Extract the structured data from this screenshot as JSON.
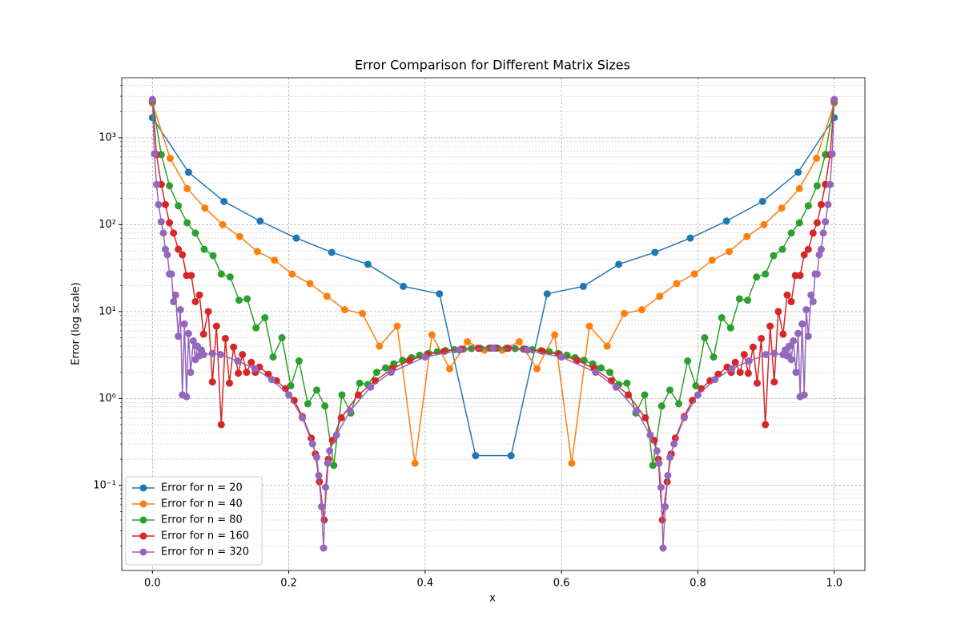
{
  "chart_data": {
    "type": "line",
    "title": "Error Comparison for Different Matrix Sizes",
    "xlabel": "x",
    "ylabel": "Error (log scale)",
    "log_y": true,
    "grid": true,
    "minor_grid": true,
    "legend": "lower left",
    "xlim": [
      -0.045,
      1.045
    ],
    "xticks": [
      {
        "value": 0,
        "label": "0.0"
      },
      {
        "value": 0.2,
        "label": "0.2"
      },
      {
        "value": 0.4,
        "label": "0.4"
      },
      {
        "value": 0.6,
        "label": "0.6"
      },
      {
        "value": 0.8,
        "label": "0.8"
      },
      {
        "value": 1,
        "label": "1.0"
      }
    ],
    "ylim": [
      0.0105,
      4900
    ],
    "yticks": [
      {
        "value": 0.1,
        "label": "10⁻¹"
      },
      {
        "value": 1,
        "label": "10⁰"
      },
      {
        "value": 10,
        "label": "10¹"
      },
      {
        "value": 100,
        "label": "10²"
      },
      {
        "value": 1000,
        "label": "10³"
      }
    ],
    "yminorticks": [
      0.02,
      0.03,
      0.04,
      0.05,
      0.06,
      0.07,
      0.08,
      0.09,
      0.2,
      0.3,
      0.4,
      0.5,
      0.6,
      0.7,
      0.8,
      0.9,
      2,
      3,
      4,
      5,
      6,
      7,
      8,
      9,
      20,
      30,
      40,
      50,
      60,
      70,
      80,
      90,
      200,
      300,
      400,
      500,
      600,
      700,
      800,
      900,
      2000,
      3000,
      4000
    ],
    "series": [
      {
        "name": "Error for n = 20",
        "color": "#1f77b4",
        "x": [
          0,
          0.053,
          0.105,
          0.158,
          0.211,
          0.263,
          0.316,
          0.368,
          0.421,
          0.474,
          0.526,
          0.579,
          0.632,
          0.684,
          0.737,
          0.789,
          0.842,
          0.895,
          0.947,
          1
        ],
        "values": [
          1700,
          400,
          185,
          110,
          70,
          48,
          35,
          19.5,
          16,
          0.22,
          0.22,
          16,
          19.5,
          35,
          48,
          70,
          110,
          185,
          400,
          1700
        ]
      },
      {
        "name": "Error for n = 40",
        "color": "#ff7f0e",
        "x": [
          0,
          0.026,
          0.051,
          0.077,
          0.103,
          0.128,
          0.154,
          0.179,
          0.205,
          0.231,
          0.256,
          0.282,
          0.308,
          0.333,
          0.359,
          0.385,
          0.41,
          0.436,
          0.462,
          0.487,
          0.513,
          0.538,
          0.564,
          0.59,
          0.615,
          0.641,
          0.667,
          0.692,
          0.718,
          0.744,
          0.769,
          0.795,
          0.821,
          0.846,
          0.872,
          0.897,
          0.923,
          0.949,
          0.974,
          1
        ],
        "values": [
          2500,
          580,
          260,
          155,
          100,
          73,
          49,
          39,
          27,
          21,
          15,
          10.5,
          9.5,
          4,
          6.8,
          0.18,
          5.4,
          2.2,
          4.5,
          3.6,
          3.6,
          4.5,
          2.2,
          5.4,
          0.18,
          6.8,
          4,
          9.5,
          10.5,
          15,
          21,
          27,
          39,
          49,
          73,
          100,
          155,
          260,
          580,
          2500
        ]
      },
      {
        "name": "Error for n = 80",
        "color": "#2ca02c",
        "x": [
          0,
          0.013,
          0.025,
          0.038,
          0.051,
          0.063,
          0.076,
          0.089,
          0.101,
          0.114,
          0.127,
          0.139,
          0.152,
          0.165,
          0.177,
          0.19,
          0.203,
          0.215,
          0.228,
          0.241,
          0.253,
          0.266,
          0.278,
          0.291,
          0.304,
          0.316,
          0.329,
          0.342,
          0.354,
          0.367,
          0.38,
          0.392,
          0.405,
          0.418,
          0.43,
          0.443,
          0.456,
          0.468,
          0.481,
          0.494,
          0.506,
          0.519,
          0.532,
          0.544,
          0.557,
          0.57,
          0.582,
          0.595,
          0.608,
          0.62,
          0.633,
          0.646,
          0.658,
          0.671,
          0.684,
          0.696,
          0.709,
          0.722,
          0.734,
          0.747,
          0.759,
          0.772,
          0.785,
          0.797,
          0.81,
          0.823,
          0.835,
          0.848,
          0.861,
          0.873,
          0.886,
          0.899,
          0.911,
          0.924,
          0.937,
          0.949,
          0.962,
          0.975,
          0.987,
          1
        ],
        "values": [
          2600,
          640,
          280,
          165,
          105,
          80,
          52,
          44,
          27,
          25,
          13.5,
          14,
          6.5,
          8.5,
          3,
          5,
          1.4,
          2.7,
          0.87,
          1.25,
          0.82,
          0.17,
          1.1,
          0.68,
          1.5,
          1.45,
          2.0,
          2.25,
          2.5,
          2.75,
          2.95,
          3.15,
          3.3,
          3.45,
          3.55,
          3.65,
          3.7,
          3.75,
          3.78,
          3.8,
          3.8,
          3.78,
          3.75,
          3.7,
          3.65,
          3.55,
          3.45,
          3.3,
          3.15,
          2.95,
          2.75,
          2.5,
          2.25,
          2.0,
          1.45,
          1.5,
          0.68,
          1.1,
          0.17,
          0.82,
          1.25,
          0.87,
          2.7,
          1.4,
          5,
          3,
          8.5,
          6.5,
          14,
          13.5,
          25,
          27,
          44,
          52,
          80,
          105,
          165,
          280,
          640,
          2600
        ]
      },
      {
        "name": "Error for n = 160",
        "color": "#d62728",
        "x": [
          0,
          0.006,
          0.013,
          0.019,
          0.025,
          0.031,
          0.038,
          0.044,
          0.05,
          0.057,
          0.063,
          0.069,
          0.075,
          0.082,
          0.088,
          0.094,
          0.101,
          0.107,
          0.113,
          0.119,
          0.126,
          0.132,
          0.138,
          0.145,
          0.151,
          0.157,
          0.17,
          0.182,
          0.195,
          0.208,
          0.22,
          0.233,
          0.239,
          0.245,
          0.252,
          0.258,
          0.264,
          0.277,
          0.302,
          0.327,
          0.352,
          0.377,
          0.403,
          0.428,
          0.453,
          0.478,
          0.497,
          0.503,
          0.522,
          0.547,
          0.572,
          0.597,
          0.623,
          0.648,
          0.673,
          0.698,
          0.723,
          0.736,
          0.742,
          0.748,
          0.755,
          0.761,
          0.767,
          0.78,
          0.792,
          0.805,
          0.818,
          0.83,
          0.843,
          0.849,
          0.855,
          0.862,
          0.868,
          0.874,
          0.881,
          0.887,
          0.893,
          0.899,
          0.906,
          0.912,
          0.918,
          0.925,
          0.931,
          0.937,
          0.943,
          0.95,
          0.956,
          0.962,
          0.969,
          0.975,
          0.981,
          0.987,
          0.994,
          1
        ],
        "values": [
          2700,
          640,
          290,
          170,
          105,
          80,
          52,
          45,
          26,
          26,
          13,
          15.5,
          5.5,
          10,
          1.55,
          6.8,
          0.5,
          4.9,
          1.5,
          3.9,
          1.95,
          3.2,
          2.0,
          2.6,
          2.0,
          2.3,
          1.9,
          1.6,
          1.3,
          0.95,
          0.62,
          0.35,
          0.23,
          0.11,
          0.04,
          0.2,
          0.33,
          0.6,
          1.1,
          1.6,
          2.2,
          2.75,
          3.2,
          3.5,
          3.7,
          3.78,
          3.8,
          3.8,
          3.78,
          3.7,
          3.5,
          3.2,
          2.75,
          2.2,
          1.6,
          1.1,
          0.6,
          0.33,
          0.2,
          0.04,
          0.11,
          0.23,
          0.35,
          0.62,
          0.95,
          1.3,
          1.6,
          1.9,
          2.3,
          2.0,
          2.6,
          2.0,
          3.2,
          1.95,
          3.9,
          1.5,
          4.9,
          0.5,
          6.8,
          1.55,
          10,
          5.5,
          15.5,
          13,
          26,
          26,
          45,
          52,
          80,
          105,
          170,
          290,
          640,
          2700
        ]
      },
      {
        "name": "Error for n = 320",
        "color": "#9467bd",
        "x": [
          0,
          0.003,
          0.006,
          0.009,
          0.013,
          0.016,
          0.019,
          0.022,
          0.025,
          0.028,
          0.031,
          0.034,
          0.038,
          0.041,
          0.044,
          0.047,
          0.05,
          0.053,
          0.056,
          0.06,
          0.063,
          0.066,
          0.069,
          0.072,
          0.075,
          0.088,
          0.1,
          0.125,
          0.15,
          0.175,
          0.2,
          0.22,
          0.235,
          0.241,
          0.244,
          0.248,
          0.251,
          0.254,
          0.257,
          0.26,
          0.27,
          0.29,
          0.32,
          0.35,
          0.4,
          0.45,
          0.5,
          0.55,
          0.6,
          0.65,
          0.68,
          0.71,
          0.73,
          0.74,
          0.743,
          0.746,
          0.749,
          0.752,
          0.756,
          0.759,
          0.765,
          0.78,
          0.8,
          0.825,
          0.85,
          0.875,
          0.9,
          0.912,
          0.925,
          0.928,
          0.931,
          0.934,
          0.937,
          0.94,
          0.944,
          0.947,
          0.95,
          0.953,
          0.956,
          0.959,
          0.962,
          0.966,
          0.969,
          0.972,
          0.975,
          0.978,
          0.981,
          0.984,
          0.987,
          0.991,
          0.994,
          0.997,
          1
        ],
        "values": [
          2750,
          650,
          290,
          170,
          108,
          80,
          52,
          45,
          27,
          27,
          13,
          15.5,
          5.2,
          10.5,
          1.1,
          7.2,
          1.05,
          5.6,
          2.0,
          4.6,
          2.8,
          4.0,
          3.1,
          3.6,
          3.2,
          3.3,
          3.2,
          2.7,
          2.2,
          1.65,
          1.1,
          0.6,
          0.3,
          0.21,
          0.13,
          0.057,
          0.019,
          0.095,
          0.18,
          0.25,
          0.38,
          0.72,
          1.35,
          2.0,
          3.0,
          3.6,
          3.8,
          3.6,
          3.0,
          2.0,
          1.35,
          0.72,
          0.38,
          0.25,
          0.18,
          0.095,
          0.019,
          0.057,
          0.13,
          0.21,
          0.3,
          0.6,
          1.1,
          1.65,
          2.2,
          2.7,
          3.2,
          3.3,
          3.2,
          3.6,
          3.1,
          4.0,
          2.8,
          4.6,
          2.0,
          5.6,
          1.05,
          7.2,
          1.1,
          10.5,
          5.2,
          15.5,
          13,
          27,
          27,
          45,
          52,
          80,
          108,
          170,
          290,
          650,
          2750
        ]
      }
    ]
  }
}
